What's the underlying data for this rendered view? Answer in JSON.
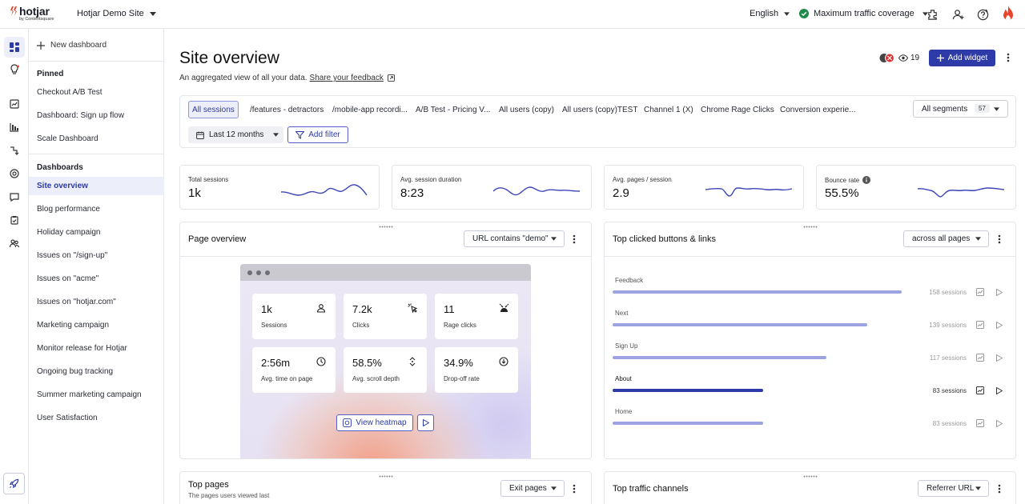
{
  "brand": {
    "name": "hotjar",
    "sub": "by Contentsquare"
  },
  "site": {
    "name": "Hotjar Demo Site"
  },
  "topbar": {
    "language": "English",
    "coverage": "Maximum traffic coverage"
  },
  "sidebar": {
    "new_dashboard": "New dashboard",
    "pinned_header": "Pinned",
    "pinned": [
      "Checkout A/B Test",
      "Dashboard: Sign up flow",
      "Scale Dashboard"
    ],
    "dashboards_header": "Dashboards",
    "dashboards": [
      "Site overview",
      "Blog performance",
      "Holiday campaign",
      "Issues on \"/sign-up\"",
      "Issues on \"acme\"",
      "Issues on \"hotjar.com\"",
      "Marketing campaign",
      "Monitor release for Hotjar",
      "Ongoing bug tracking",
      "Summer marketing campaign",
      "User Satisfaction"
    ]
  },
  "header": {
    "title": "Site overview",
    "description": "An aggregated view of all your data.",
    "feedback_link": "Share your feedback",
    "viewers": "19",
    "add_widget": "Add widget"
  },
  "segments": {
    "tabs": [
      "All sessions",
      "/features - detractors",
      "/mobile-app recordi...",
      "A/B Test - Pricing V...",
      "All users (copy)",
      "All users (copy)TEST",
      "Channel 1 (X)",
      "Chrome Rage Clicks",
      "Conversion experie..."
    ],
    "all_segments": "All segments",
    "segment_count": "57",
    "date_range": "Last 12 months",
    "add_filter": "Add filter"
  },
  "metrics": [
    {
      "label": "Total sessions",
      "value": "1k"
    },
    {
      "label": "Avg. session duration",
      "value": "8:23"
    },
    {
      "label": "Avg. pages / session",
      "value": "2.9"
    },
    {
      "label": "Bounce rate",
      "value": "55.5%"
    }
  ],
  "page_overview": {
    "title": "Page overview",
    "filter": "URL contains \"demo\"",
    "tiles": [
      {
        "value": "1k",
        "label": "Sessions",
        "icon": "users-icon"
      },
      {
        "value": "7.2k",
        "label": "Clicks",
        "icon": "click-icon"
      },
      {
        "value": "11",
        "label": "Rage clicks",
        "icon": "rage-face-icon"
      },
      {
        "value": "2:56m",
        "label": "Avg. time on page",
        "icon": "clock-icon"
      },
      {
        "value": "58.5%",
        "label": "Avg. scroll depth",
        "icon": "scroll-icon"
      },
      {
        "value": "34.9%",
        "label": "Drop-off rate",
        "icon": "arrow-down-circle-icon"
      }
    ],
    "view_heatmap": "View heatmap"
  },
  "top_clicked": {
    "title": "Top clicked buttons & links",
    "filter": "across all pages",
    "items": [
      {
        "label": "Feedback",
        "count": "158 sessions",
        "share": 1.0,
        "highlight": false
      },
      {
        "label": "Next",
        "count": "139 sessions",
        "share": 0.88,
        "highlight": false
      },
      {
        "label": "Sign Up",
        "count": "117 sessions",
        "share": 0.74,
        "highlight": false
      },
      {
        "label": "About",
        "count": "83 sessions",
        "share": 0.52,
        "highlight": true
      },
      {
        "label": "Home",
        "count": "83 sessions",
        "share": 0.52,
        "highlight": false
      }
    ]
  },
  "top_pages": {
    "title": "Top pages",
    "subtitle": "The pages users viewed last",
    "filter": "Exit pages"
  },
  "top_channels": {
    "title": "Top traffic channels",
    "filter": "Referrer URL"
  },
  "colors": {
    "accent": "#2d3aa8",
    "bar_light": "#9da3e0",
    "spark": "#3d46b8"
  }
}
